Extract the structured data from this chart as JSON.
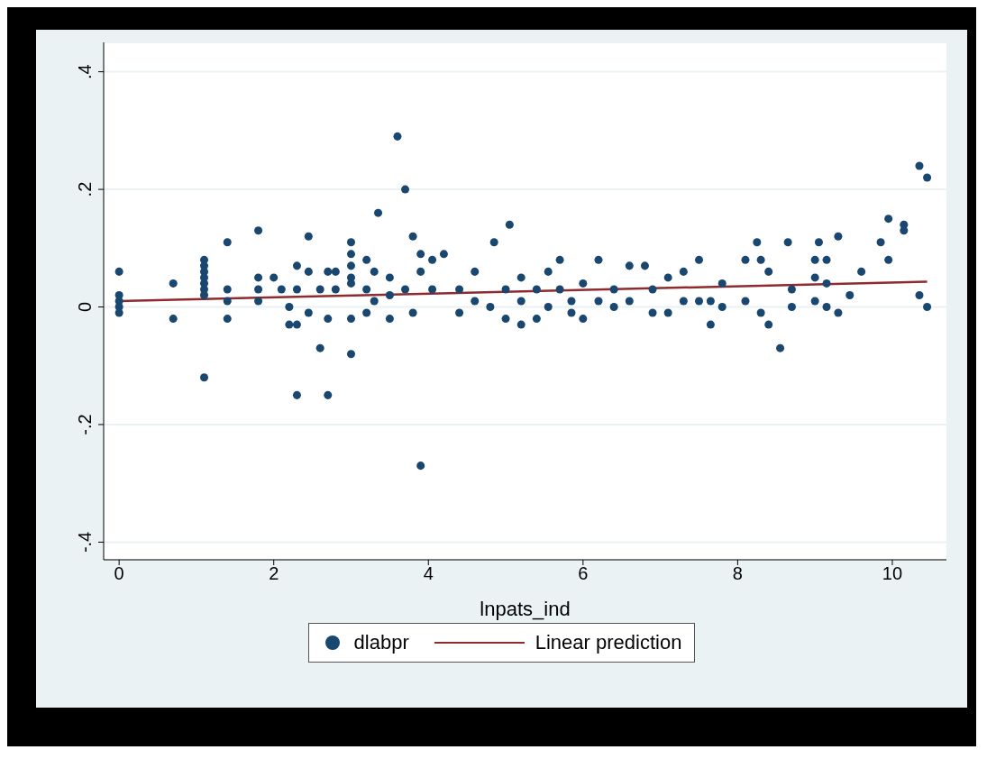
{
  "chart_data": {
    "type": "scatter",
    "xlabel": "lnpats_ind",
    "xlim": [
      -0.2,
      10.7
    ],
    "ylim": [
      -0.43,
      0.45
    ],
    "xticks": [
      0,
      2,
      4,
      6,
      8,
      10
    ],
    "yticks": [
      {
        "value": -0.4,
        "label": "-.4"
      },
      {
        "value": -0.2,
        "label": "-.2"
      },
      0,
      {
        "value": 0.2,
        "label": ".2"
      },
      {
        "value": 0.4,
        "label": ".4"
      }
    ],
    "grid": "y",
    "legend": "bottom",
    "series": [
      {
        "name": "dlabpr",
        "color": "#1a476f",
        "marker": "circle",
        "x": [
          0,
          0,
          0,
          0,
          0,
          0.7,
          0.7,
          1.1,
          1.1,
          1.1,
          1.1,
          1.1,
          1.1,
          1.1,
          1.1,
          1.4,
          1.4,
          1.4,
          1.4,
          1.8,
          1.8,
          1.8,
          1.8,
          2.0,
          2.1,
          2.2,
          2.2,
          2.3,
          2.3,
          2.3,
          2.3,
          2.45,
          2.45,
          2.45,
          2.6,
          2.6,
          2.7,
          2.7,
          2.7,
          2.8,
          2.8,
          3.0,
          3.0,
          3.0,
          3.0,
          3.0,
          3.0,
          3.0,
          3.2,
          3.2,
          3.2,
          3.3,
          3.3,
          3.35,
          3.5,
          3.5,
          3.5,
          3.6,
          3.7,
          3.7,
          3.8,
          3.8,
          3.9,
          3.9,
          3.9,
          4.05,
          4.05,
          4.2,
          4.4,
          4.4,
          4.6,
          4.6,
          4.8,
          4.85,
          5.0,
          5.0,
          5.05,
          5.2,
          5.2,
          5.2,
          5.4,
          5.4,
          5.55,
          5.55,
          5.7,
          5.7,
          5.85,
          5.85,
          6.0,
          6.0,
          6.2,
          6.2,
          6.4,
          6.4,
          6.6,
          6.6,
          6.8,
          6.9,
          6.9,
          7.1,
          7.1,
          7.3,
          7.3,
          7.5,
          7.5,
          7.65,
          7.65,
          7.8,
          7.8,
          8.1,
          8.1,
          8.25,
          8.3,
          8.3,
          8.4,
          8.4,
          8.55,
          8.65,
          8.7,
          8.7,
          9.0,
          9.0,
          9.0,
          9.05,
          9.15,
          9.15,
          9.15,
          9.3,
          9.3,
          9.45,
          9.6,
          9.85,
          9.95,
          9.95,
          10.15,
          10.15,
          10.35,
          10.35,
          10.45,
          10.45
        ],
        "values": [
          0.06,
          0.02,
          0.01,
          0,
          -0.01,
          0.04,
          -0.02,
          0.08,
          0.07,
          0.06,
          0.05,
          0.04,
          0.03,
          0.02,
          -0.12,
          0.11,
          0.03,
          0.01,
          -0.02,
          0.13,
          0.05,
          0.03,
          0.01,
          0.05,
          0.03,
          0,
          -0.03,
          0.07,
          0.03,
          -0.15,
          -0.03,
          0.12,
          0.06,
          -0.01,
          0.03,
          -0.07,
          -0.02,
          -0.15,
          0.06,
          0.03,
          0.06,
          0.11,
          0.09,
          0.07,
          0.05,
          0.04,
          -0.08,
          -0.02,
          0.08,
          0.03,
          -0.01,
          0.06,
          0.01,
          0.16,
          0.05,
          0.02,
          -0.02,
          0.29,
          0.2,
          0.03,
          0.12,
          -0.01,
          0.09,
          0.06,
          -0.27,
          0.08,
          0.03,
          0.09,
          0.03,
          -0.01,
          0.06,
          0.01,
          0,
          0.11,
          0.03,
          -0.02,
          0.14,
          0.05,
          -0.03,
          0.01,
          0.03,
          -0.02,
          0.06,
          0,
          0.08,
          0.03,
          0.01,
          -0.01,
          0.04,
          -0.02,
          0.08,
          0.01,
          0.03,
          0,
          0.07,
          0.01,
          0.07,
          0.03,
          -0.01,
          0.05,
          -0.01,
          0.06,
          0.01,
          0.08,
          0.01,
          -0.03,
          0.01,
          0.04,
          0,
          0.08,
          0.01,
          0.11,
          0.08,
          -0.01,
          -0.03,
          0.06,
          -0.07,
          0.11,
          0,
          0.03,
          0.01,
          0.05,
          0.08,
          0.11,
          0.08,
          0.04,
          0,
          0.12,
          -0.01,
          0.02,
          0.06,
          0.11,
          0.15,
          0.08,
          0.14,
          0.13,
          0.24,
          0.02,
          0.22,
          0
        ]
      },
      {
        "type": "line",
        "name": "Linear prediction",
        "color": "#8f2a2f",
        "marker": "none",
        "line_style": "solid",
        "x": [
          0,
          10.45
        ],
        "values": [
          0.01,
          0.043
        ]
      }
    ]
  }
}
